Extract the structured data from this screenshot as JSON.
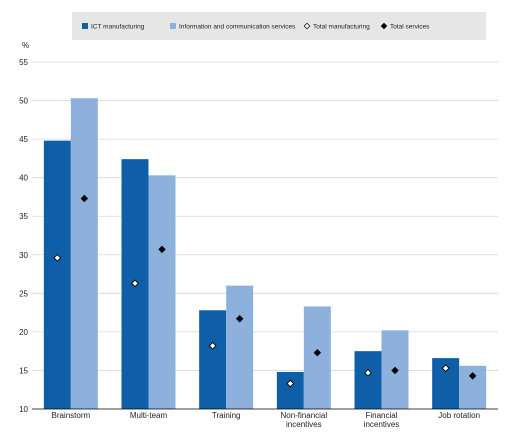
{
  "chart_data": {
    "type": "bar",
    "title": "",
    "xlabel": "",
    "ylabel": "%",
    "ylim": [
      10,
      55
    ],
    "yticks": [
      10,
      15,
      20,
      25,
      30,
      35,
      40,
      45,
      50,
      55
    ],
    "grid": true,
    "legend_position": "top",
    "categories": [
      [
        "Brainstorm"
      ],
      [
        "Multi-team"
      ],
      [
        "Training"
      ],
      [
        "Non-financial",
        "incentives"
      ],
      [
        "Financial",
        "incentives"
      ],
      [
        "Job rotation"
      ]
    ],
    "series": [
      {
        "name": "ICT manufacturing",
        "kind": "bar",
        "color": "#0f5fa8",
        "values": [
          44.8,
          42.4,
          22.8,
          14.8,
          17.5,
          16.6
        ]
      },
      {
        "name": "Information and communication services",
        "kind": "bar",
        "color": "#8db1dc",
        "values": [
          50.3,
          40.3,
          26.0,
          23.3,
          20.2,
          15.6
        ]
      },
      {
        "name": "Total manufacturing",
        "kind": "marker",
        "marker": "diamond-open",
        "values": [
          29.6,
          26.3,
          18.2,
          13.3,
          14.7,
          15.3
        ]
      },
      {
        "name": "Total services",
        "kind": "marker",
        "marker": "diamond-filled",
        "values": [
          37.3,
          30.7,
          21.7,
          17.3,
          15.0,
          14.3
        ]
      }
    ]
  }
}
